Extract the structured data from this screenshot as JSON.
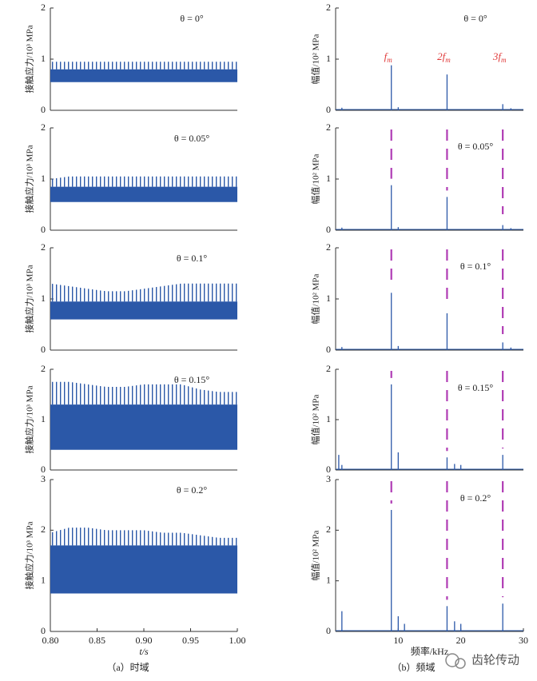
{
  "chart_data": [
    {
      "type": "area_range",
      "title": "θ = 0°",
      "ylabel": "接触应力/10³ MPa",
      "x": [
        0.8,
        0.82,
        0.84,
        0.86,
        0.88,
        0.9,
        0.92,
        0.94,
        0.96,
        0.98,
        1.0
      ],
      "values_min": [
        0.55,
        0.55,
        0.55,
        0.55,
        0.55,
        0.55,
        0.55,
        0.55,
        0.55,
        0.55,
        0.55
      ],
      "values_max": [
        0.8,
        0.8,
        0.8,
        0.8,
        0.8,
        0.8,
        0.8,
        0.8,
        0.8,
        0.8,
        0.8
      ],
      "values_peak": [
        0.95,
        0.95,
        0.95,
        0.95,
        0.95,
        0.95,
        0.95,
        0.95,
        0.95,
        0.95,
        0.95
      ],
      "color": "#2b58a8",
      "xlim": [
        0.8,
        1.0
      ],
      "ylim": [
        0,
        2
      ],
      "yticks": [
        0,
        1,
        2
      ]
    },
    {
      "type": "area_range",
      "title": "θ = 0.05°",
      "ylabel": "接触应力/10³ MPa",
      "x": [
        0.8,
        0.82,
        0.84,
        0.86,
        0.88,
        0.9,
        0.92,
        0.94,
        0.96,
        0.98,
        1.0
      ],
      "values_min": [
        0.55,
        0.55,
        0.55,
        0.55,
        0.55,
        0.55,
        0.55,
        0.55,
        0.55,
        0.55,
        0.55
      ],
      "values_max": [
        0.85,
        0.85,
        0.85,
        0.85,
        0.85,
        0.85,
        0.85,
        0.85,
        0.85,
        0.85,
        0.85
      ],
      "values_peak": [
        1.0,
        1.05,
        1.05,
        1.05,
        1.05,
        1.05,
        1.05,
        1.05,
        1.05,
        1.05,
        1.05
      ],
      "color": "#2b58a8",
      "xlim": [
        0.8,
        1.0
      ],
      "ylim": [
        0,
        2
      ],
      "yticks": [
        0,
        1,
        2
      ]
    },
    {
      "type": "area_range",
      "title": "θ = 0.1°",
      "ylabel": "接触应力/10³ MPa",
      "x": [
        0.8,
        0.82,
        0.84,
        0.86,
        0.88,
        0.9,
        0.92,
        0.94,
        0.96,
        0.98,
        1.0
      ],
      "values_min": [
        0.6,
        0.6,
        0.6,
        0.6,
        0.6,
        0.6,
        0.6,
        0.6,
        0.6,
        0.6,
        0.6
      ],
      "values_max": [
        0.95,
        0.95,
        0.95,
        0.95,
        0.95,
        0.95,
        0.95,
        0.95,
        0.95,
        0.95,
        0.95
      ],
      "values_peak": [
        1.3,
        1.25,
        1.2,
        1.15,
        1.15,
        1.2,
        1.25,
        1.3,
        1.3,
        1.3,
        1.3
      ],
      "color": "#2b58a8",
      "xlim": [
        0.8,
        1.0
      ],
      "ylim": [
        0,
        2
      ],
      "yticks": [
        0,
        1,
        2
      ]
    },
    {
      "type": "area_range",
      "title": "θ = 0.15°",
      "ylabel": "接触应力/10³ MPa",
      "x": [
        0.8,
        0.82,
        0.84,
        0.86,
        0.88,
        0.9,
        0.92,
        0.94,
        0.96,
        0.98,
        1.0
      ],
      "values_min": [
        0.4,
        0.4,
        0.4,
        0.4,
        0.4,
        0.4,
        0.4,
        0.4,
        0.4,
        0.4,
        0.4
      ],
      "values_max": [
        1.3,
        1.3,
        1.3,
        1.3,
        1.3,
        1.3,
        1.3,
        1.3,
        1.3,
        1.3,
        1.3
      ],
      "values_peak": [
        1.75,
        1.75,
        1.7,
        1.65,
        1.65,
        1.7,
        1.7,
        1.7,
        1.6,
        1.55,
        1.55
      ],
      "color": "#2b58a8",
      "xlim": [
        0.8,
        1.0
      ],
      "ylim": [
        0,
        2
      ],
      "yticks": [
        0,
        1,
        2
      ]
    },
    {
      "type": "area_range",
      "title": "θ = 0.2°",
      "ylabel": "接触应力/10³ MPa",
      "xlabel": "t/s",
      "caption": "（a）时域",
      "x": [
        0.8,
        0.82,
        0.84,
        0.86,
        0.88,
        0.9,
        0.92,
        0.94,
        0.96,
        0.98,
        1.0
      ],
      "values_min": [
        0.75,
        0.75,
        0.75,
        0.75,
        0.75,
        0.75,
        0.75,
        0.75,
        0.75,
        0.75,
        0.75
      ],
      "values_max": [
        1.7,
        1.7,
        1.7,
        1.7,
        1.7,
        1.7,
        1.7,
        1.7,
        1.7,
        1.7,
        1.7
      ],
      "values_peak": [
        1.95,
        2.05,
        2.05,
        2.0,
        2.0,
        2.0,
        1.95,
        1.95,
        1.9,
        1.85,
        1.85
      ],
      "color": "#2b58a8",
      "xlim": [
        0.8,
        1.0
      ],
      "ylim": [
        0,
        3
      ],
      "yticks": [
        0,
        1,
        2,
        3
      ],
      "xticks": [
        {
          "value": 0.8,
          "label": "0.80"
        },
        0.85,
        {
          "value": 0.9,
          "label": "0.90"
        },
        0.95,
        {
          "value": 1.0,
          "label": "1.00"
        }
      ]
    },
    {
      "type": "stem",
      "title": "θ = 0°",
      "ylabel": "幅值/10² MPa",
      "x": [
        1.0,
        8.9,
        10.0,
        17.8,
        26.7,
        28.0
      ],
      "values": [
        0.05,
        0.88,
        0.06,
        0.7,
        0.12,
        0.04
      ],
      "harmonics": [
        8.9,
        17.8,
        26.7
      ],
      "annotations": [
        {
          "text": "f",
          "sub": "m"
        },
        {
          "text": "2f",
          "sub": "m"
        },
        {
          "text": "3f",
          "sub": "m"
        }
      ],
      "color": "#2b58a8",
      "annotation_color": "#e03a3a",
      "xlim": [
        0,
        30
      ],
      "ylim": [
        0,
        2
      ],
      "yticks": [
        0,
        1,
        2
      ]
    },
    {
      "type": "stem",
      "title": "θ = 0.05°",
      "ylabel": "幅值/10² MPa",
      "x": [
        1.0,
        8.9,
        10.0,
        17.8,
        26.7,
        28.0
      ],
      "values": [
        0.05,
        0.88,
        0.06,
        0.65,
        0.1,
        0.04
      ],
      "harmonics": [
        8.9,
        17.8,
        26.7
      ],
      "harmonic_color": "#b03cb4",
      "color": "#2b58a8",
      "xlim": [
        0,
        30
      ],
      "ylim": [
        0,
        2
      ],
      "yticks": [
        0,
        1,
        2
      ]
    },
    {
      "type": "stem",
      "title": "θ = 0.1°",
      "ylabel": "幅值/10² MPa",
      "x": [
        1.0,
        8.9,
        10.0,
        17.8,
        26.7,
        28.0
      ],
      "values": [
        0.06,
        1.12,
        0.08,
        0.72,
        0.15,
        0.05
      ],
      "harmonics": [
        8.9,
        17.8,
        26.7
      ],
      "harmonic_color": "#b03cb4",
      "color": "#2b58a8",
      "xlim": [
        0,
        30
      ],
      "ylim": [
        0,
        2
      ],
      "yticks": [
        0,
        1,
        2
      ]
    },
    {
      "type": "stem",
      "title": "θ = 0.15°",
      "ylabel": "幅值/10² MPa",
      "x": [
        0.5,
        1.0,
        8.9,
        10.0,
        17.8,
        19.0,
        20.0,
        26.7
      ],
      "values": [
        0.3,
        0.1,
        1.7,
        0.35,
        0.25,
        0.12,
        0.1,
        0.3
      ],
      "harmonics": [
        8.9,
        17.8,
        26.7
      ],
      "harmonic_color": "#b03cb4",
      "color": "#2b58a8",
      "xlim": [
        0,
        30
      ],
      "ylim": [
        0,
        2
      ],
      "yticks": [
        0,
        1,
        2
      ]
    },
    {
      "type": "stem",
      "title": "θ = 0.2°",
      "ylabel": "幅值/10² MPa",
      "xlabel": "频率/kHz",
      "caption": "（b）频域",
      "x": [
        1.0,
        8.9,
        10.0,
        11.0,
        17.8,
        19.0,
        20.0,
        26.7
      ],
      "values": [
        0.4,
        2.4,
        0.3,
        0.15,
        0.5,
        0.2,
        0.15,
        0.55
      ],
      "harmonics": [
        8.9,
        17.8,
        26.7
      ],
      "harmonic_color": "#b03cb4",
      "color": "#2b58a8",
      "xlim": [
        0,
        30
      ],
      "ylim": [
        0,
        3
      ],
      "yticks": [
        0,
        1,
        2,
        3
      ],
      "xticks": [
        10,
        20,
        30
      ]
    }
  ],
  "watermark": "齿轮传动"
}
